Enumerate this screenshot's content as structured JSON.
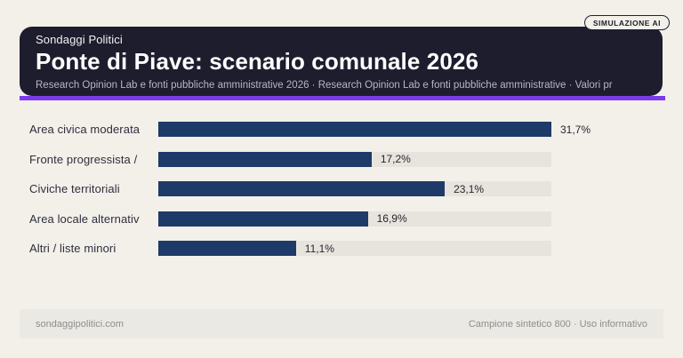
{
  "badge": {
    "label": "SIMULAZIONE AI"
  },
  "header": {
    "brand": "Sondaggi Politici",
    "title": "Ponte di Piave: scenario comunale 2026",
    "subtitle": "Research Opinion Lab e fonti pubbliche amministrative 2026 · Research Opinion Lab e fonti pubbliche amministrative · Valori pr"
  },
  "chart_data": {
    "type": "bar",
    "orientation": "horizontal",
    "title": "Ponte di Piave: scenario comunale 2026",
    "categories": [
      "Area civica moderata",
      "Fronte progressista /",
      "Civiche territoriali",
      "Area locale alternativ",
      "Altri / liste minori"
    ],
    "values": [
      31.7,
      17.2,
      23.1,
      16.9,
      11.1
    ],
    "value_labels": [
      "31,7%",
      "17,2%",
      "23,1%",
      "16,9%",
      "11,1%"
    ],
    "unit": "%",
    "xlim": [
      0,
      31.7
    ],
    "max_value": 31.7,
    "grid": false,
    "legend": false
  },
  "footer": {
    "left": "sondaggipolitici.com",
    "right": "Campione sintetico 800 · Uso informativo"
  },
  "colors": {
    "background": "#f3f0e9",
    "header_bg": "#1d1d2e",
    "accent": "#7c3aed",
    "bar": "#1e3a68",
    "track": "#e7e4de",
    "footer_bg": "#ebe9e4",
    "footer_text": "#8e8e8e"
  }
}
